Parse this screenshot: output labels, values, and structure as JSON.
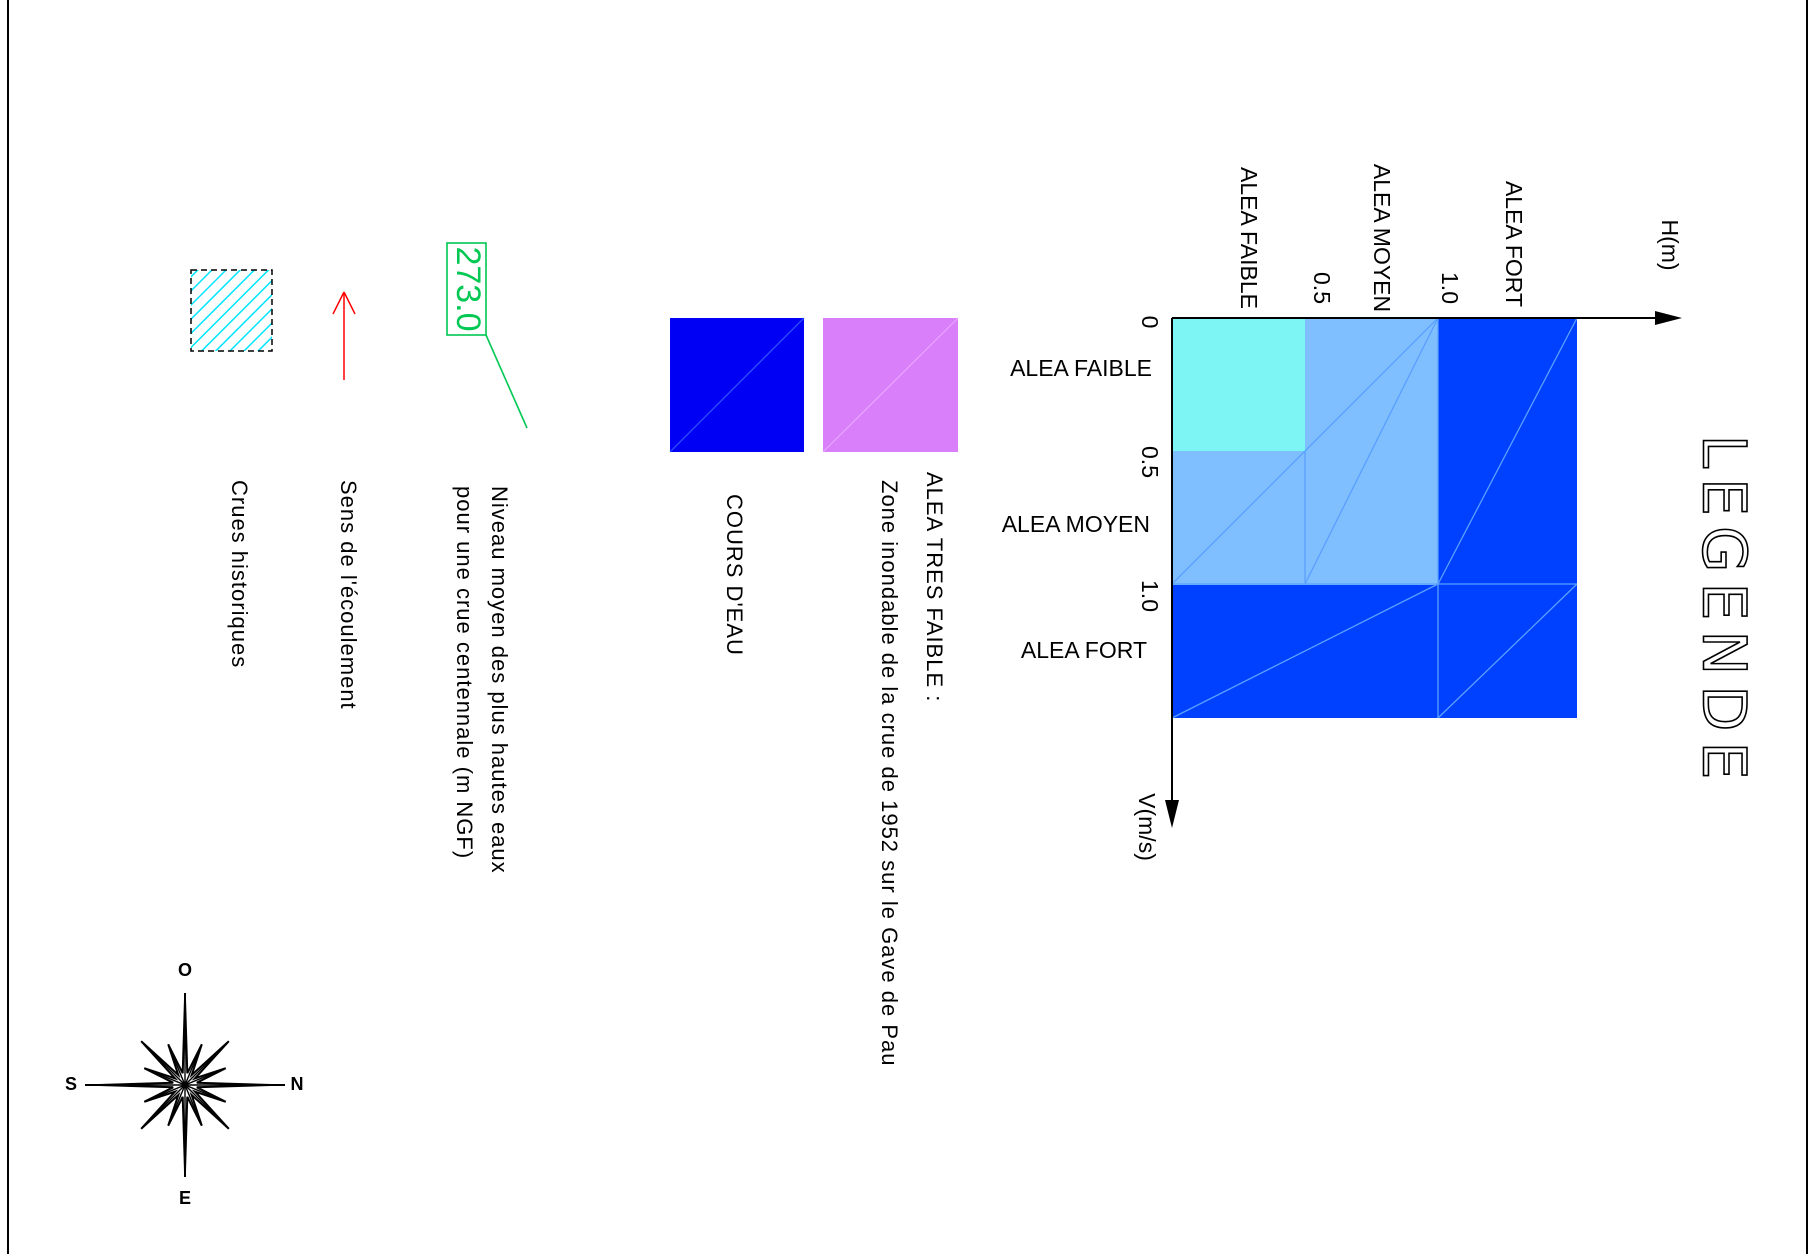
{
  "title": "LEGENDE",
  "matrix": {
    "h_axis_label": "H(m)",
    "v_axis_label": "V(m/s)",
    "h_ticks": [
      "0",
      "0.5",
      "1.0"
    ],
    "v_ticks": [
      "0",
      "0.5",
      "1.0"
    ],
    "column_labels": [
      "ALEA FAIBLE",
      "ALEA MOYEN",
      "ALEA FORT"
    ],
    "row_labels": [
      "ALEA FAIBLE",
      "ALEA MOYEN",
      "ALEA FORT"
    ],
    "colors": {
      "faible": "#7ef5f5",
      "moyen": "#80bfff",
      "fort": "#0040ff",
      "cell_border": "#5aa0ff"
    }
  },
  "legend": {
    "tres_faible_title": "ALEA TRES FAIBLE :",
    "tres_faible_desc": "Zone inondable de la crue de 1952 sur le Gave de Pau",
    "tres_faible_color": "#da7ffa",
    "cours_eau_label": "COURS D'EAU",
    "cours_eau_color": "#0000f5",
    "niveau_value": "273.0",
    "niveau_line1": "Niveau moyen des plus hautes eaux",
    "niveau_line2": "pour une crue centennale (m NGF)",
    "niveau_color": "#00c853",
    "sens_label": "Sens de l'écoulement",
    "sens_color": "#ff0000",
    "crues_label": "Crues historiques",
    "crues_color": "#00e5ff"
  },
  "compass": {
    "north": "N",
    "south": "S",
    "east": "E",
    "west": "O"
  }
}
